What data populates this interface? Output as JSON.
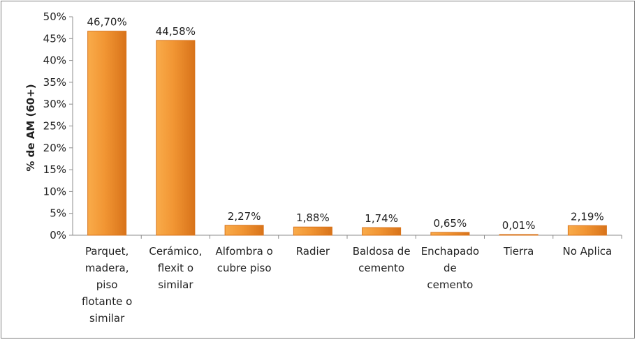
{
  "chart_data": {
    "type": "bar",
    "ylabel": "% de AM (60+)",
    "xlabel": "",
    "title": "",
    "categories": [
      [
        "Parquet,",
        "madera,",
        "piso",
        "flotante o",
        "similar"
      ],
      [
        "Cerámico,",
        "flexit o",
        "similar"
      ],
      [
        "Alfombra o",
        "cubre piso"
      ],
      [
        "Radier"
      ],
      [
        "Baldosa de",
        "cemento"
      ],
      [
        "Enchapado",
        "de",
        "cemento"
      ],
      [
        "Tierra"
      ],
      [
        "No Aplica"
      ]
    ],
    "values": [
      46.7,
      44.58,
      2.27,
      1.88,
      1.74,
      0.65,
      0.01,
      2.19
    ],
    "value_labels": [
      "46,70%",
      "44,58%",
      "2,27%",
      "1,88%",
      "1,74%",
      "0,65%",
      "0,01%",
      "2,19%"
    ],
    "ylim": [
      0,
      50
    ],
    "yticks": [
      0,
      5,
      10,
      15,
      20,
      25,
      30,
      35,
      40,
      45,
      50
    ],
    "ytick_labels": [
      "0%",
      "5%",
      "10%",
      "15%",
      "20%",
      "25%",
      "30%",
      "35%",
      "40%",
      "45%",
      "50%"
    ],
    "grid": false,
    "legend": "none",
    "colors": {
      "bar_light": "#f9ab4a",
      "bar_main": "#f19533",
      "bar_dark": "#d8731a",
      "axis": "#8c8c8c"
    }
  }
}
